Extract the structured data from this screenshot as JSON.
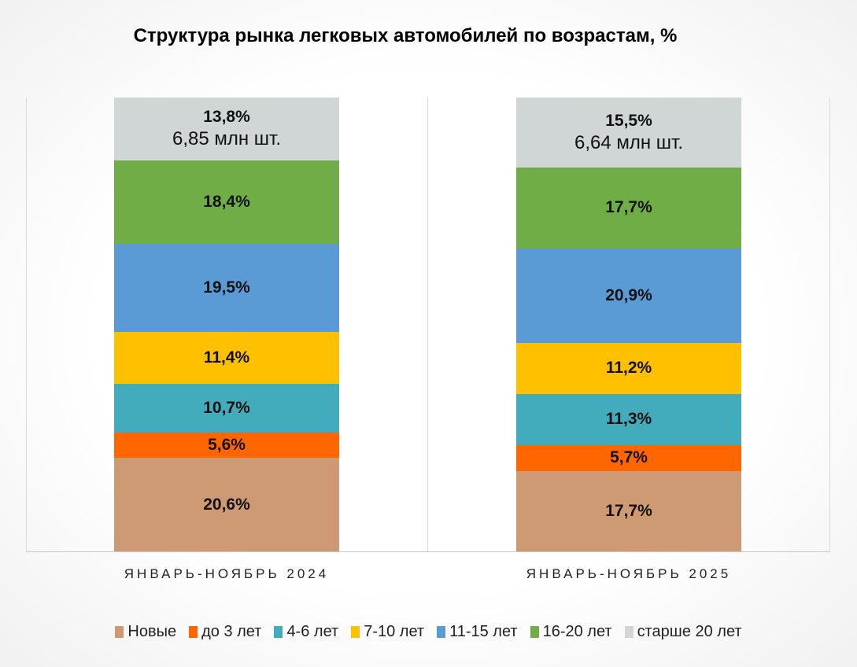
{
  "chart_data": {
    "type": "bar",
    "stacked": true,
    "percent": true,
    "title": "Структура  рынка легковых автомобилей  по возрастам, %",
    "categories": [
      "ЯНВАРЬ-НОЯБРЬ 2024",
      "ЯНВАРЬ-НОЯБРЬ 2025"
    ],
    "ylim": [
      0,
      100
    ],
    "grid": false,
    "legend_position": "bottom",
    "series": [
      {
        "name": "Новые",
        "color": "#CE9A74",
        "values": [
          20.6,
          17.7
        ],
        "labels": [
          "20,6%",
          "17,7%"
        ]
      },
      {
        "name": "до 3 лет",
        "color": "#FF6600",
        "values": [
          5.6,
          5.7
        ],
        "labels": [
          "5,6%",
          "5,7%"
        ]
      },
      {
        "name": "4-6 лет",
        "color": "#42ACBC",
        "values": [
          10.7,
          11.3
        ],
        "labels": [
          "10,7%",
          "11,3%"
        ]
      },
      {
        "name": "7-10 лет",
        "color": "#FFC000",
        "values": [
          11.4,
          11.2
        ],
        "labels": [
          "11,4%",
          "11,2%"
        ]
      },
      {
        "name": "11-15 лет",
        "color": "#5B9BD5",
        "values": [
          19.5,
          20.9
        ],
        "labels": [
          "19,5%",
          "20,9%"
        ]
      },
      {
        "name": "16-20 лет",
        "color": "#70AD47",
        "values": [
          18.4,
          17.7
        ],
        "labels": [
          "18,4%",
          "17,7%"
        ]
      },
      {
        "name": "старше 20 лет",
        "color": "#D0D5D6",
        "values": [
          13.8,
          15.5
        ],
        "labels": [
          "13,8%",
          "15,5%"
        ]
      }
    ],
    "totals": [
      "6,85 млн шт.",
      "6,64 млн шт."
    ]
  }
}
